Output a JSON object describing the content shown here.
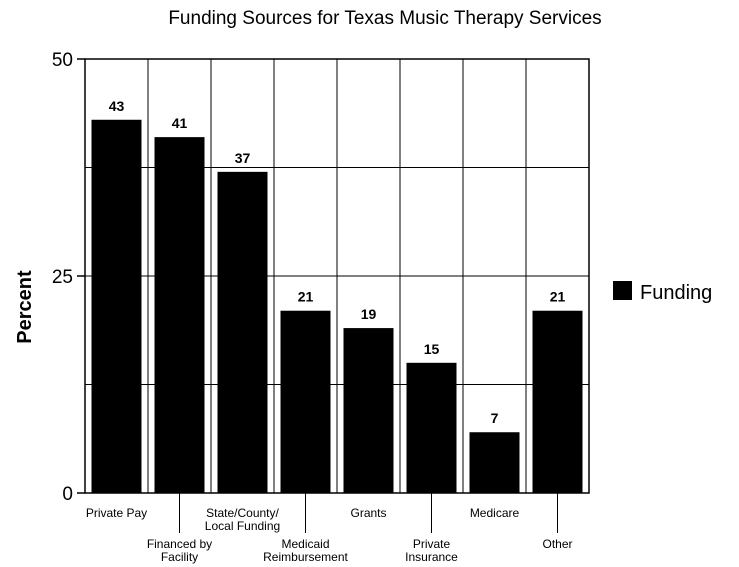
{
  "chart_data": {
    "type": "bar",
    "title": "Funding Sources for Texas Music Therapy Services",
    "ylabel": "Percent",
    "xlabel": "",
    "ylim": [
      0,
      50
    ],
    "yticks": [
      0,
      25,
      50
    ],
    "grid": true,
    "legend_position": "right",
    "categories": [
      [
        "Private Pay"
      ],
      [
        "Financed by",
        "Facility"
      ],
      [
        "State/County/",
        "Local Funding"
      ],
      [
        "Medicaid",
        "Reimbursement"
      ],
      [
        "Grants"
      ],
      [
        "Private",
        "Insurance"
      ],
      [
        "Medicare"
      ],
      [
        "Other"
      ]
    ],
    "series": [
      {
        "name": "Funding",
        "color": "#000000",
        "values": [
          43,
          41,
          37,
          21,
          19,
          15,
          7,
          21
        ]
      }
    ]
  }
}
